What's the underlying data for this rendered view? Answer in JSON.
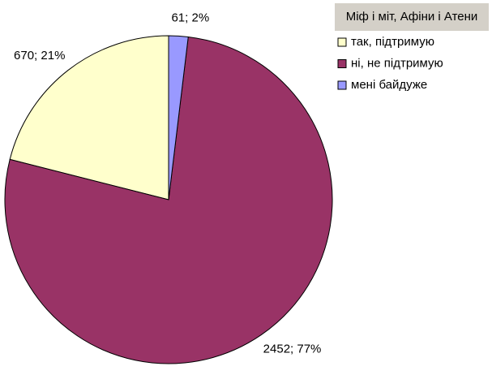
{
  "chart_data": {
    "type": "pie",
    "title": "Міф і міт, Афіни і Атени",
    "categories": [
      "так, підтримую",
      "ні, не підтримую",
      "мені байдуже"
    ],
    "values": [
      670,
      2452,
      61
    ],
    "value_labels": [
      "670; 21%",
      "2452; 77%",
      "61; 2%"
    ],
    "colors": [
      "#ffffcc",
      "#993366",
      "#9999ff"
    ],
    "counterclock": true
  }
}
